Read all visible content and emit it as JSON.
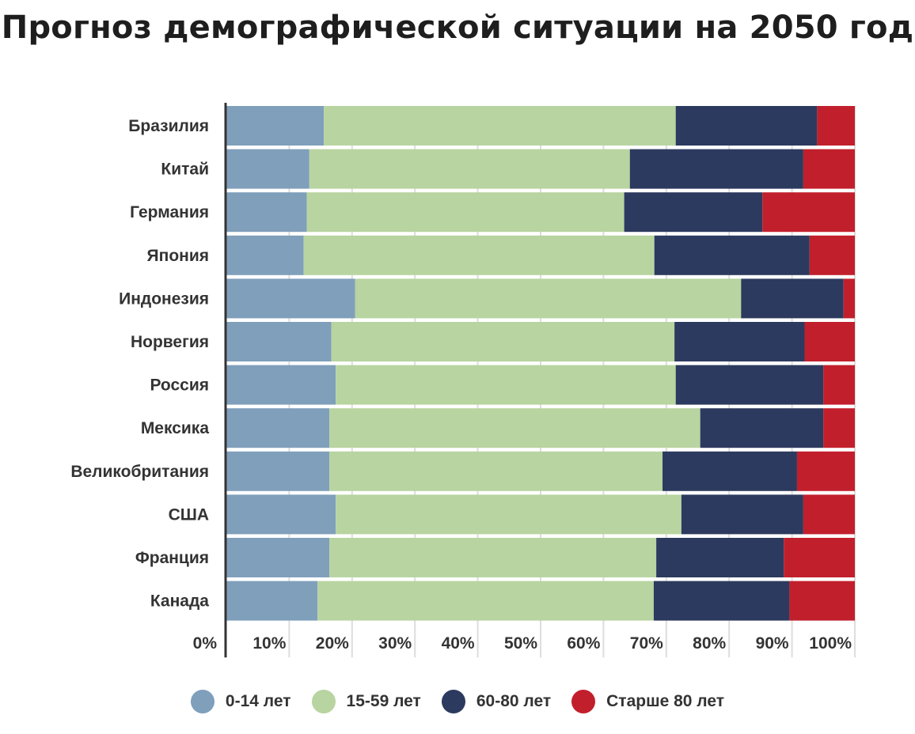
{
  "title": "Прогноз демографической ситуации на 2050 год",
  "chart_data": {
    "type": "bar",
    "orientation": "horizontal",
    "stacked": true,
    "title": "Прогноз демографической ситуации на 2050 год",
    "categories": [
      "Бразилия",
      "Китай",
      "Германия",
      "Япония",
      "Индонезия",
      "Норвегия",
      "Россия",
      "Мексика",
      "Великобритания",
      "США",
      "Франция",
      "Канада"
    ],
    "series": [
      {
        "name": "0-14 лет",
        "color": "#7f9fbb",
        "values": [
          15.5,
          13.2,
          12.8,
          12.3,
          20.5,
          16.7,
          17.4,
          16.4,
          16.4,
          17.4,
          16.4,
          14.5
        ]
      },
      {
        "name": "15-59 лет",
        "color": "#b8d4a0",
        "values": [
          56.0,
          51.0,
          50.5,
          55.8,
          61.4,
          54.6,
          54.1,
          59.0,
          53.0,
          55.0,
          52.0,
          53.5
        ]
      },
      {
        "name": "60-80 лет",
        "color": "#2d3a5f",
        "values": [
          22.5,
          27.6,
          22.0,
          24.7,
          16.3,
          20.7,
          23.5,
          19.6,
          21.4,
          19.4,
          20.3,
          21.6
        ]
      },
      {
        "name": "Старше 80 лет",
        "color": "#c21f2c",
        "values": [
          6.0,
          8.2,
          14.7,
          7.2,
          1.8,
          8.0,
          5.0,
          5.0,
          9.2,
          8.2,
          11.3,
          10.4
        ]
      }
    ],
    "x_ticks": [
      "0%",
      "10%",
      "20%",
      "30%",
      "40%",
      "50%",
      "60%",
      "70%",
      "80%",
      "90%",
      "100%"
    ],
    "xlim": [
      0,
      100
    ],
    "grid": true,
    "legend_position": "bottom"
  }
}
